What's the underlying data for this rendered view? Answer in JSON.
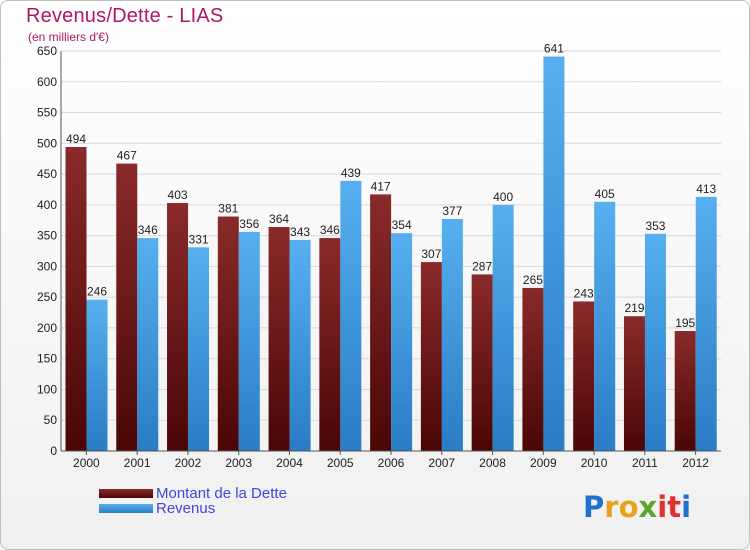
{
  "header": {
    "title": "Revenus/Dette - LIAS",
    "subtitle": "(en milliers d'€)"
  },
  "colors": {
    "debt": "#7a1f1f",
    "debt_dark": "#4c0808",
    "revenue": "#4aa3e8",
    "revenue_dark": "#2c7fc6",
    "title": "#b0175d",
    "legend_text": "#4444dd"
  },
  "legend": {
    "debt_label": "Montant de la Dette",
    "revenue_label": "Revenus"
  },
  "logo": {
    "letters": [
      "P",
      "r",
      "o",
      "x",
      "i",
      "t",
      "i"
    ],
    "colors": [
      "#1e6fd0",
      "#e8a21b",
      "#e8a21b",
      "#5aa62a",
      "#e03030",
      "#e03030",
      "#1e6fd0"
    ]
  },
  "chart_data": {
    "type": "bar",
    "title": "Revenus/Dette - LIAS",
    "ylabel": "(en milliers d'€)",
    "categories": [
      "2000",
      "2001",
      "2002",
      "2003",
      "2004",
      "2005",
      "2006",
      "2007",
      "2008",
      "2009",
      "2010",
      "2011",
      "2012"
    ],
    "series": [
      {
        "name": "Montant de la Dette",
        "values": [
          494,
          467,
          403,
          381,
          364,
          346,
          417,
          307,
          287,
          265,
          243,
          219,
          195
        ]
      },
      {
        "name": "Revenus",
        "values": [
          246,
          346,
          331,
          356,
          343,
          439,
          354,
          377,
          400,
          641,
          405,
          353,
          413
        ]
      }
    ],
    "ylim": [
      0,
      650
    ],
    "yticks": [
      0,
      50,
      100,
      150,
      200,
      250,
      300,
      350,
      400,
      450,
      500,
      550,
      600,
      650
    ],
    "grid": true,
    "legend_position": "bottom-left"
  }
}
